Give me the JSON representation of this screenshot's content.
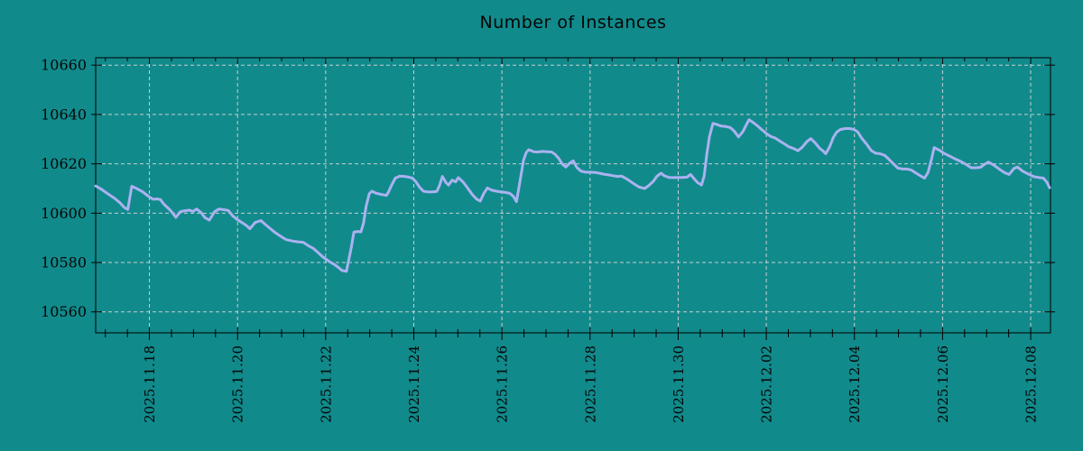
{
  "title": "Number of Instances",
  "colors": {
    "background": "#118a8b",
    "grid": "#c7ced2",
    "axis": "#000000",
    "text": "#050505",
    "line": "#aab2f0"
  },
  "chart_data": {
    "type": "line",
    "title": "Number of Instances",
    "xlabel": "",
    "ylabel": "",
    "legend": "none",
    "grid": true,
    "y_ticks": [
      10560,
      10580,
      10600,
      10620,
      10640,
      10660
    ],
    "y_tick_labels": [
      "10560",
      "10580",
      "10600",
      "10620",
      "10640",
      "10660"
    ],
    "y_range": [
      10551.5,
      10663.0
    ],
    "x_tick_labels": [
      "2025.11.18",
      "2025.11.20",
      "2025.11.22",
      "2025.11.24",
      "2025.11.26",
      "2025.11.28",
      "2025.11.30",
      "2025.12.02",
      "2025.12.04",
      "2025.12.06",
      "2025.12.08"
    ],
    "x_tick_positions_days": [
      0,
      2,
      4,
      6,
      8,
      10,
      12,
      14,
      16,
      18,
      20
    ],
    "x_minor_tick_interval_days": 0.5,
    "x_range_days": [
      -1.22,
      20.45
    ],
    "series": [
      {
        "name": "instances",
        "color": "#aab2f0",
        "points": [
          [
            -1.22,
            10611.0
          ],
          [
            -1.08,
            10609.6
          ],
          [
            -0.94,
            10607.8
          ],
          [
            -0.79,
            10606.0
          ],
          [
            -0.67,
            10604.2
          ],
          [
            -0.57,
            10602.3
          ],
          [
            -0.49,
            10601.5
          ],
          [
            -0.4,
            10610.9
          ],
          [
            -0.32,
            10610.3
          ],
          [
            -0.24,
            10609.5
          ],
          [
            -0.16,
            10608.7
          ],
          [
            -0.08,
            10607.6
          ],
          [
            0.01,
            10606.4
          ],
          [
            0.09,
            10605.6
          ],
          [
            0.17,
            10605.8
          ],
          [
            0.25,
            10605.5
          ],
          [
            0.33,
            10603.6
          ],
          [
            0.44,
            10601.8
          ],
          [
            0.52,
            10600.2
          ],
          [
            0.6,
            10598.3
          ],
          [
            0.7,
            10600.6
          ],
          [
            0.81,
            10601.0
          ],
          [
            0.91,
            10601.2
          ],
          [
            0.99,
            10600.7
          ],
          [
            1.07,
            10601.7
          ],
          [
            1.17,
            10600.3
          ],
          [
            1.26,
            10598.2
          ],
          [
            1.36,
            10597.2
          ],
          [
            1.48,
            10600.6
          ],
          [
            1.58,
            10601.7
          ],
          [
            1.69,
            10601.4
          ],
          [
            1.79,
            10601.1
          ],
          [
            1.89,
            10598.9
          ],
          [
            1.99,
            10597.5
          ],
          [
            2.1,
            10596.2
          ],
          [
            2.2,
            10595.0
          ],
          [
            2.28,
            10593.7
          ],
          [
            2.4,
            10596.2
          ],
          [
            2.53,
            10597.0
          ],
          [
            2.63,
            10595.4
          ],
          [
            2.73,
            10593.9
          ],
          [
            2.85,
            10592.2
          ],
          [
            2.98,
            10590.6
          ],
          [
            3.1,
            10589.3
          ],
          [
            3.24,
            10588.7
          ],
          [
            3.37,
            10588.4
          ],
          [
            3.49,
            10588.2
          ],
          [
            3.59,
            10587.0
          ],
          [
            3.72,
            10585.7
          ],
          [
            3.82,
            10584.1
          ],
          [
            3.94,
            10582.2
          ],
          [
            4.08,
            10580.4
          ],
          [
            4.19,
            10579.3
          ],
          [
            4.29,
            10578.0
          ],
          [
            4.37,
            10576.8
          ],
          [
            4.47,
            10576.4
          ],
          [
            4.58,
            10586.0
          ],
          [
            4.64,
            10592.3
          ],
          [
            4.72,
            10592.6
          ],
          [
            4.8,
            10592.4
          ],
          [
            4.86,
            10596.0
          ],
          [
            4.92,
            10603.0
          ],
          [
            4.99,
            10607.9
          ],
          [
            5.05,
            10608.9
          ],
          [
            5.13,
            10608.2
          ],
          [
            5.21,
            10607.8
          ],
          [
            5.29,
            10607.5
          ],
          [
            5.38,
            10607.2
          ],
          [
            5.42,
            10608.4
          ],
          [
            5.5,
            10611.5
          ],
          [
            5.58,
            10614.2
          ],
          [
            5.68,
            10615.0
          ],
          [
            5.79,
            10614.9
          ],
          [
            5.89,
            10614.6
          ],
          [
            5.97,
            10614.2
          ],
          [
            6.05,
            10612.7
          ],
          [
            6.13,
            10610.5
          ],
          [
            6.22,
            10608.9
          ],
          [
            6.32,
            10608.6
          ],
          [
            6.42,
            10608.6
          ],
          [
            6.52,
            10608.8
          ],
          [
            6.58,
            10611.0
          ],
          [
            6.65,
            10614.9
          ],
          [
            6.73,
            10612.4
          ],
          [
            6.79,
            10611.4
          ],
          [
            6.87,
            10613.4
          ],
          [
            6.95,
            10612.7
          ],
          [
            7.01,
            10614.4
          ],
          [
            7.12,
            10612.6
          ],
          [
            7.22,
            10610.2
          ],
          [
            7.32,
            10607.7
          ],
          [
            7.42,
            10605.8
          ],
          [
            7.51,
            10604.9
          ],
          [
            7.59,
            10608.0
          ],
          [
            7.67,
            10610.2
          ],
          [
            7.77,
            10609.3
          ],
          [
            7.88,
            10608.9
          ],
          [
            7.98,
            10608.6
          ],
          [
            8.08,
            10608.4
          ],
          [
            8.18,
            10608.0
          ],
          [
            8.26,
            10606.8
          ],
          [
            8.33,
            10604.7
          ],
          [
            8.41,
            10613.0
          ],
          [
            8.49,
            10621.5
          ],
          [
            8.55,
            10624.5
          ],
          [
            8.61,
            10625.7
          ],
          [
            8.72,
            10624.9
          ],
          [
            8.82,
            10624.8
          ],
          [
            8.92,
            10625.0
          ],
          [
            9.02,
            10624.9
          ],
          [
            9.13,
            10624.8
          ],
          [
            9.21,
            10623.8
          ],
          [
            9.29,
            10622.2
          ],
          [
            9.37,
            10619.9
          ],
          [
            9.45,
            10618.7
          ],
          [
            9.54,
            10620.3
          ],
          [
            9.62,
            10621.2
          ],
          [
            9.7,
            10618.5
          ],
          [
            9.8,
            10617.0
          ],
          [
            9.9,
            10616.6
          ],
          [
            10.01,
            10616.6
          ],
          [
            10.11,
            10616.5
          ],
          [
            10.21,
            10616.2
          ],
          [
            10.31,
            10615.8
          ],
          [
            10.42,
            10615.5
          ],
          [
            10.52,
            10615.2
          ],
          [
            10.62,
            10614.9
          ],
          [
            10.72,
            10615.0
          ],
          [
            10.83,
            10613.9
          ],
          [
            10.93,
            10612.7
          ],
          [
            11.03,
            10611.5
          ],
          [
            11.11,
            10610.6
          ],
          [
            11.24,
            10610.0
          ],
          [
            11.34,
            10611.3
          ],
          [
            11.44,
            10613.0
          ],
          [
            11.52,
            10615.0
          ],
          [
            11.61,
            10616.2
          ],
          [
            11.69,
            10615.1
          ],
          [
            11.79,
            10614.5
          ],
          [
            11.89,
            10614.4
          ],
          [
            12.0,
            10614.5
          ],
          [
            12.1,
            10614.5
          ],
          [
            12.2,
            10614.6
          ],
          [
            12.28,
            10615.7
          ],
          [
            12.36,
            10614.0
          ],
          [
            12.44,
            10612.4
          ],
          [
            12.53,
            10611.4
          ],
          [
            12.59,
            10615.0
          ],
          [
            12.65,
            10624.0
          ],
          [
            12.71,
            10631.0
          ],
          [
            12.79,
            10636.4
          ],
          [
            12.88,
            10635.9
          ],
          [
            12.98,
            10635.3
          ],
          [
            13.08,
            10635.1
          ],
          [
            13.18,
            10634.7
          ],
          [
            13.27,
            10633.3
          ],
          [
            13.37,
            10630.9
          ],
          [
            13.47,
            10633.1
          ],
          [
            13.55,
            10635.9
          ],
          [
            13.61,
            10637.9
          ],
          [
            13.7,
            10636.8
          ],
          [
            13.8,
            10635.4
          ],
          [
            13.9,
            10633.8
          ],
          [
            14.0,
            10632.3
          ],
          [
            14.1,
            10631.1
          ],
          [
            14.21,
            10630.4
          ],
          [
            14.31,
            10629.2
          ],
          [
            14.41,
            10628.1
          ],
          [
            14.51,
            10626.9
          ],
          [
            14.62,
            10626.2
          ],
          [
            14.72,
            10625.3
          ],
          [
            14.82,
            10626.8
          ],
          [
            14.92,
            10629.0
          ],
          [
            15.01,
            10630.2
          ],
          [
            15.11,
            10628.5
          ],
          [
            15.21,
            10626.3
          ],
          [
            15.29,
            10625.2
          ],
          [
            15.35,
            10624.1
          ],
          [
            15.44,
            10627.0
          ],
          [
            15.52,
            10630.7
          ],
          [
            15.6,
            10632.9
          ],
          [
            15.68,
            10633.9
          ],
          [
            15.79,
            10634.3
          ],
          [
            15.89,
            10634.3
          ],
          [
            15.99,
            10633.9
          ],
          [
            16.07,
            10633.0
          ],
          [
            16.17,
            10630.3
          ],
          [
            16.28,
            10627.9
          ],
          [
            16.38,
            10625.4
          ],
          [
            16.48,
            10624.3
          ],
          [
            16.58,
            10624.1
          ],
          [
            16.69,
            10623.4
          ],
          [
            16.79,
            10621.7
          ],
          [
            16.89,
            10619.9
          ],
          [
            16.99,
            10618.2
          ],
          [
            17.1,
            10617.9
          ],
          [
            17.2,
            10617.9
          ],
          [
            17.3,
            10617.4
          ],
          [
            17.4,
            10616.2
          ],
          [
            17.51,
            10615.0
          ],
          [
            17.59,
            10614.2
          ],
          [
            17.67,
            10616.5
          ],
          [
            17.75,
            10622.0
          ],
          [
            17.81,
            10626.6
          ],
          [
            17.92,
            10625.6
          ],
          [
            18.04,
            10624.2
          ],
          [
            18.16,
            10623.1
          ],
          [
            18.29,
            10622.0
          ],
          [
            18.41,
            10621.0
          ],
          [
            18.53,
            10619.8
          ],
          [
            18.65,
            10618.4
          ],
          [
            18.76,
            10618.4
          ],
          [
            18.86,
            10618.6
          ],
          [
            18.96,
            10619.9
          ],
          [
            19.04,
            10620.7
          ],
          [
            19.17,
            10619.4
          ],
          [
            19.29,
            10617.8
          ],
          [
            19.41,
            10616.4
          ],
          [
            19.51,
            10615.7
          ],
          [
            19.62,
            10618.1
          ],
          [
            19.7,
            10618.7
          ],
          [
            19.82,
            10617.0
          ],
          [
            19.94,
            10615.9
          ],
          [
            20.07,
            10614.8
          ],
          [
            20.19,
            10614.4
          ],
          [
            20.29,
            10614.2
          ],
          [
            20.37,
            10612.5
          ],
          [
            20.43,
            10610.3
          ]
        ]
      }
    ]
  }
}
